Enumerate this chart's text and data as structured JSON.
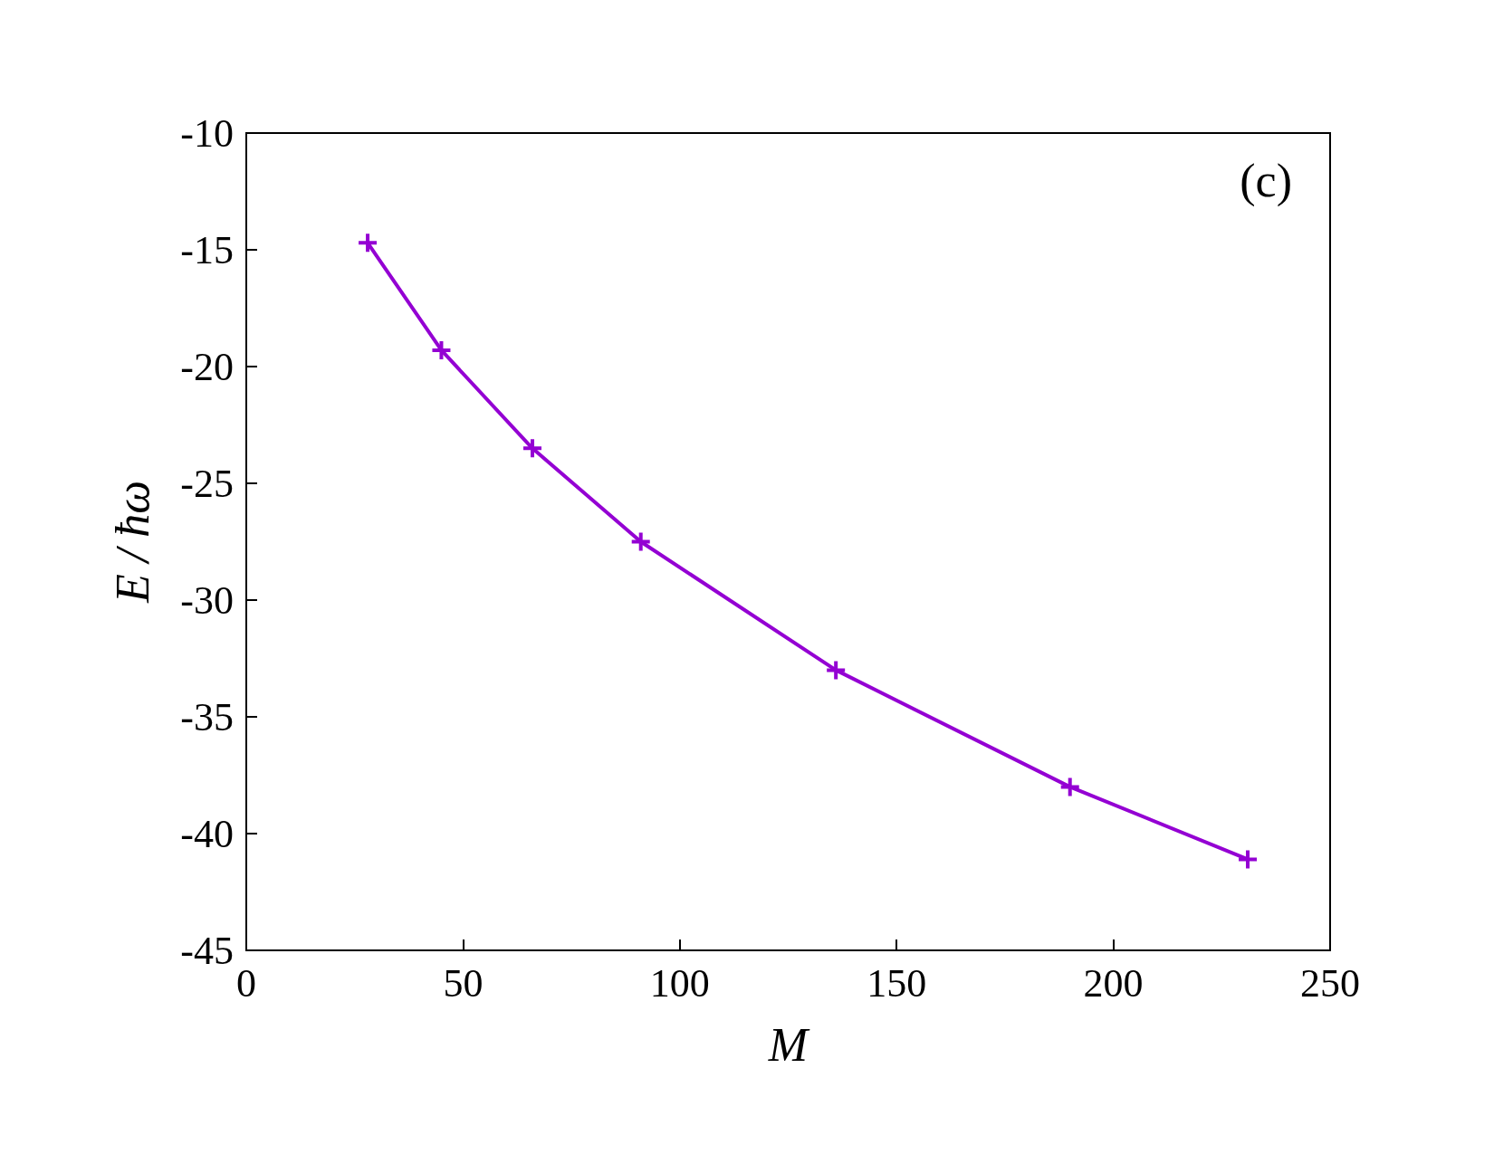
{
  "chart_data": {
    "type": "line",
    "xlabel": "M",
    "ylabel": "E / ħω",
    "annotations": [
      "(c)"
    ],
    "x": [
      28,
      45,
      66,
      91,
      136,
      190,
      231
    ],
    "series": [
      {
        "color": "#9400d3",
        "values": [
          -14.7,
          -19.3,
          -23.5,
          -27.5,
          -33.0,
          -38.0,
          -41.1
        ]
      }
    ],
    "xlim": [
      0,
      250
    ],
    "xticks": [
      0,
      50,
      100,
      150,
      200,
      250
    ],
    "ylim": [
      -45,
      -10
    ],
    "yticks": [
      -45,
      -40,
      -35,
      -30,
      -25,
      -20,
      -15,
      -10
    ],
    "grid": false,
    "marker": "cross",
    "line_style": "solid"
  }
}
